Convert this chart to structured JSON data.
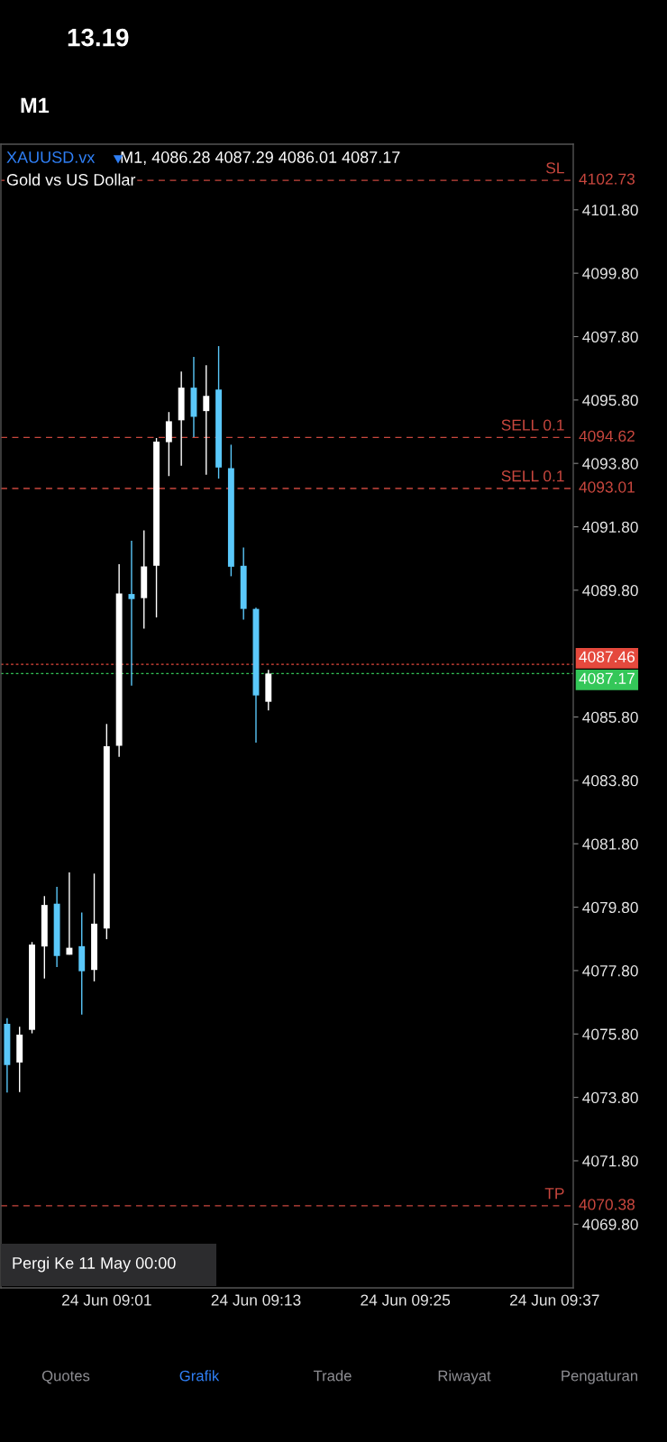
{
  "chart_data": {
    "type": "candlestick",
    "title": "XAUUSD.vx",
    "subtitle": "Gold vs US Dollar",
    "annotations": [
      "13.19",
      "M1",
      "M1, 4086.28 4087.29 4086.01 4087.17",
      "Pergi Ke 11 May 00:00",
      "Quotes",
      "Grafik",
      "Trade",
      "Riwayat",
      "Pengaturan",
      "4102.73",
      "4094.62",
      "4093.01",
      "4070.38",
      "4087.46",
      "4087.17"
    ],
    "categories": [
      null,
      null,
      null,
      null,
      null,
      null,
      null,
      null,
      "24 Jun 09:01",
      null,
      null,
      null,
      null,
      null,
      null,
      null,
      null,
      null,
      null,
      null,
      "24 Jun 09:13",
      null,
      null,
      null,
      null,
      null,
      null,
      null,
      null,
      null,
      null,
      null,
      "24 Jun 09:25",
      null,
      null,
      null,
      null,
      null,
      null,
      null,
      null,
      null,
      null,
      null,
      "24 Jun 09:37",
      null
    ],
    "ohlc": [
      [
        4076.12,
        4076.3,
        4073.95,
        4074.82
      ],
      [
        4074.9,
        4076.03,
        4073.97,
        4075.78
      ],
      [
        4075.93,
        4078.7,
        4075.82,
        4078.62
      ],
      [
        4078.56,
        4080.15,
        4077.55,
        4079.87
      ],
      [
        4079.91,
        4080.44,
        4077.91,
        4078.26
      ],
      [
        4078.3,
        4080.9,
        4078.3,
        4078.52
      ],
      [
        4078.57,
        4079.63,
        4076.41,
        4077.78
      ],
      [
        4077.82,
        4080.86,
        4077.46,
        4079.28
      ],
      [
        4079.13,
        4085.58,
        4078.79,
        4084.88
      ],
      [
        4084.89,
        4090.62,
        4084.54,
        4089.7
      ],
      [
        4089.68,
        4091.36,
        4086.79,
        4089.52
      ],
      [
        4089.55,
        4091.69,
        4088.59,
        4090.55
      ],
      [
        4090.57,
        4094.6,
        4088.94,
        4094.49
      ],
      [
        4094.47,
        4095.42,
        4093.4,
        4095.13
      ],
      [
        4095.16,
        4096.7,
        4093.73,
        4096.19
      ],
      [
        4096.19,
        4097.16,
        4094.63,
        4095.27
      ],
      [
        4095.45,
        4096.9,
        4093.44,
        4095.93
      ],
      [
        4096.13,
        4097.5,
        4093.32,
        4093.67
      ],
      [
        4093.65,
        4094.39,
        4090.24,
        4090.54
      ],
      [
        4090.57,
        4091.15,
        4088.87,
        4089.21
      ],
      [
        4089.21,
        4089.25,
        4084.99,
        4086.48
      ],
      [
        4086.28,
        4087.29,
        4086.01,
        4087.17
      ],
      null,
      null,
      null,
      null,
      null,
      null,
      null,
      null,
      null,
      null,
      null,
      null,
      null,
      null,
      null,
      null,
      null,
      null,
      null,
      null,
      null,
      null,
      null,
      null
    ],
    "colors": [
      "#5ac8fa",
      "#ffffff",
      "#ffffff",
      "#ffffff",
      "#5ac8fa",
      "#ffffff",
      "#5ac8fa",
      "#ffffff",
      "#ffffff",
      "#ffffff",
      "#5ac8fa",
      "#ffffff",
      "#ffffff",
      "#ffffff",
      "#ffffff",
      "#5ac8fa",
      "#ffffff",
      "#5ac8fa",
      "#5ac8fa",
      "#5ac8fa",
      "#5ac8fa",
      "#ffffff",
      null,
      null,
      null,
      null,
      null,
      null,
      null,
      null,
      null,
      null,
      null,
      null,
      null,
      null,
      null,
      null,
      null,
      null,
      null,
      null,
      null,
      null,
      null,
      null
    ],
    "ylim": [
      4067.79,
      4103.87
    ],
    "yticks": [
      {
        "value": 4069.8,
        "label": "4069.80"
      },
      {
        "value": 4071.8,
        "label": "4071.80"
      },
      {
        "value": 4073.8,
        "label": "4073.80"
      },
      {
        "value": 4075.8,
        "label": "4075.80"
      },
      {
        "value": 4077.8,
        "label": "4077.80"
      },
      {
        "value": 4079.8,
        "label": "4079.80"
      },
      {
        "value": 4081.8,
        "label": "4081.80"
      },
      {
        "value": 4083.8,
        "label": "4083.80"
      },
      {
        "value": 4085.8,
        "label": "4085.80"
      },
      {
        "value": 4089.8,
        "label": "4089.80"
      },
      {
        "value": 4091.8,
        "label": "4091.80"
      },
      {
        "value": 4093.8,
        "label": "4093.80"
      },
      {
        "value": 4095.8,
        "label": "4095.80"
      },
      {
        "value": 4097.8,
        "label": "4097.80"
      },
      {
        "value": 4099.8,
        "label": "4099.80"
      },
      {
        "value": 4101.8,
        "label": "4101.80"
      }
    ],
    "ref_lines": [
      {
        "axis": "y",
        "value": 4102.73,
        "label": "SL",
        "color": "#c9473e",
        "line_style": "dashed"
      },
      {
        "axis": "y",
        "value": 4094.62,
        "label": "SELL 0.1",
        "color": "#c9473e",
        "line_style": "dashed"
      },
      {
        "axis": "y",
        "value": 4093.01,
        "label": "SELL 0.1",
        "color": "#c9473e",
        "line_style": "dashed"
      },
      {
        "axis": "y",
        "value": 4070.38,
        "label": "TP",
        "color": "#c9473e",
        "line_style": "dashed"
      },
      {
        "axis": "y",
        "value": 4087.46,
        "color": "#e5493d",
        "line_style": "dotted"
      },
      {
        "axis": "y",
        "value": 4087.17,
        "color": "#34c759",
        "line_style": "dotted"
      }
    ],
    "grid": false,
    "legend": false
  }
}
